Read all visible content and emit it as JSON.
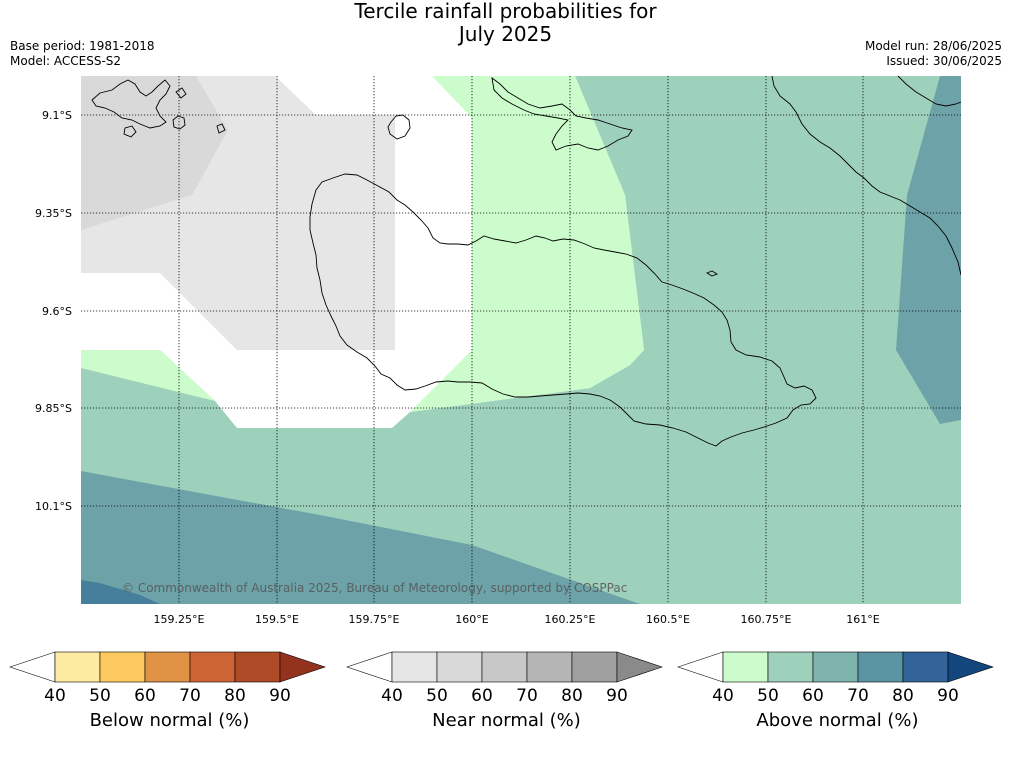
{
  "title": {
    "line1": "Tercile rainfall probabilities for",
    "line2": "July 2025"
  },
  "meta_left": {
    "base_period": "Base period: 1981-2018",
    "model": "Model: ACCESS-S2"
  },
  "meta_right": {
    "model_run": "Model run: 28/06/2025",
    "issued": "Issued: 30/06/2025"
  },
  "map": {
    "lat_labels": [
      "9.1°S",
      "9.35°S",
      "9.6°S",
      "9.85°S",
      "10.1°S"
    ],
    "lon_labels": [
      "159.25°E",
      "159.5°E",
      "159.75°E",
      "160°E",
      "160.25°E",
      "160.5°E",
      "160.75°E",
      "161°E"
    ],
    "copyright": "© Commonwealth of Australia 2025, Bureau of Meteorology, supported by COSPPac",
    "colors": {
      "near_40": "#e6e6e6",
      "near_50": "#d9d9d9",
      "above_40": "#ccfccc",
      "above_50": "#9ed1bb",
      "above_70": "#6da3a8",
      "above_80": "#467f9b",
      "coastline": "#000000",
      "gridline": "#000000"
    }
  },
  "legends": [
    {
      "label": "Below normal (%)",
      "ticks": [
        "40",
        "50",
        "60",
        "70",
        "80",
        "90"
      ],
      "colors": [
        "#ffffff",
        "#fdeba1",
        "#fdca60",
        "#e09245",
        "#cd6433",
        "#b04b28",
        "#93331e"
      ]
    },
    {
      "label": "Near normal (%)",
      "ticks": [
        "40",
        "50",
        "60",
        "70",
        "80",
        "90"
      ],
      "colors": [
        "#ffffff",
        "#e6e6e6",
        "#d9d9d9",
        "#c8c8c8",
        "#b5b5b5",
        "#a0a0a0",
        "#8a8a8a"
      ]
    },
    {
      "label": "Above normal (%)",
      "ticks": [
        "40",
        "50",
        "60",
        "70",
        "80",
        "90"
      ],
      "colors": [
        "#ffffff",
        "#ccfccc",
        "#9ed1bb",
        "#7fb3ad",
        "#5b94a2",
        "#326499",
        "#14467e"
      ]
    }
  ]
}
